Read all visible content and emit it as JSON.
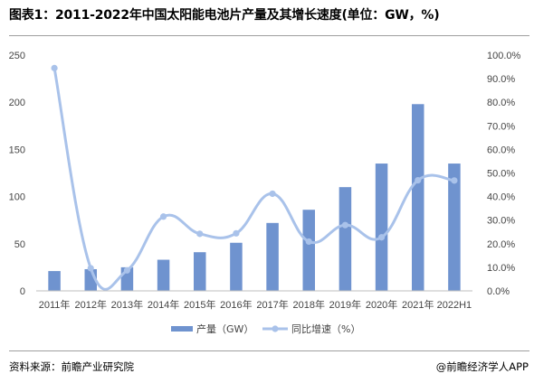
{
  "title": "图表1：2011-2022年中国太阳能电池片产量及其增长速度(单位：GW，%)",
  "footer": {
    "source": "资料来源：前瞻产业研究院",
    "brand": "@前瞻经济学人APP"
  },
  "colors": {
    "bar": "#6f93cf",
    "line": "#a9c2ea",
    "marker": "#a9c2ea"
  },
  "chart_data": {
    "type": "bar",
    "categories": [
      "2011年",
      "2012年",
      "2013年",
      "2014年",
      "2015年",
      "2016年",
      "2017年",
      "2018年",
      "2019年",
      "2020年",
      "2021年",
      "2022H1"
    ],
    "series": [
      {
        "name": "产量（GW）",
        "type": "bar",
        "axis": "left",
        "values": [
          21,
          23,
          25,
          33,
          41,
          51,
          72,
          86,
          110,
          135,
          198,
          135
        ]
      },
      {
        "name": "同比增速（%）",
        "type": "line",
        "smooth": true,
        "axis": "right",
        "values": [
          94.5,
          9.6,
          8.7,
          31.5,
          24.2,
          24.4,
          41.2,
          20.9,
          27.9,
          22.7,
          46.9,
          46.8
        ]
      }
    ],
    "y_left": {
      "ylim": [
        0,
        250
      ],
      "ticks": [
        0,
        50,
        100,
        150,
        200,
        250
      ],
      "tick_labels": [
        "0",
        "50",
        "100",
        "150",
        "200",
        "250"
      ]
    },
    "y_right": {
      "ylim": [
        0,
        100
      ],
      "ticks": [
        0,
        10,
        20,
        30,
        40,
        50,
        60,
        70,
        80,
        90,
        100
      ],
      "tick_labels": [
        "0.0%",
        "10.0%",
        "20.0%",
        "30.0%",
        "40.0%",
        "50.0%",
        "60.0%",
        "70.0%",
        "80.0%",
        "90.0%",
        "100.0%"
      ]
    },
    "grid": false,
    "legend": "bottom"
  }
}
